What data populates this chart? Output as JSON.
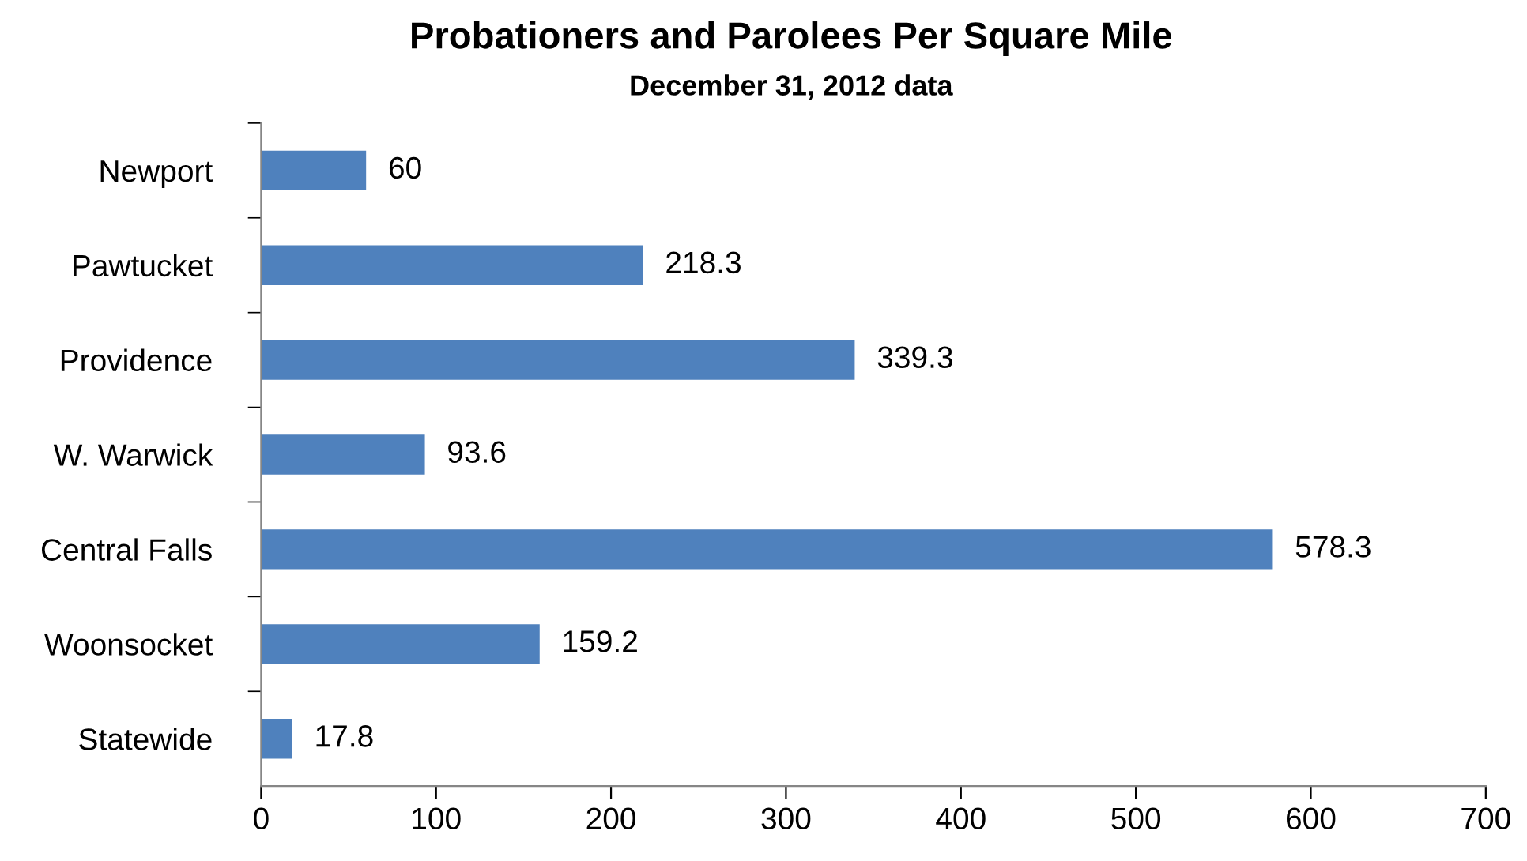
{
  "chart_data": {
    "type": "bar",
    "orientation": "horizontal",
    "title": "Probationers and Parolees Per Square Mile",
    "subtitle": "December 31, 2012 data",
    "categories": [
      "Newport",
      "Pawtucket",
      "Providence",
      "W. Warwick",
      "Central Falls",
      "Woonsocket",
      "Statewide"
    ],
    "values": [
      60,
      218.3,
      339.3,
      93.6,
      578.3,
      159.2,
      17.8
    ],
    "color": "#4f81bd",
    "xlim": [
      0,
      700
    ],
    "xticks": [
      0,
      100,
      200,
      300,
      400,
      500,
      600,
      700
    ],
    "grid": false,
    "data_labels": true
  }
}
